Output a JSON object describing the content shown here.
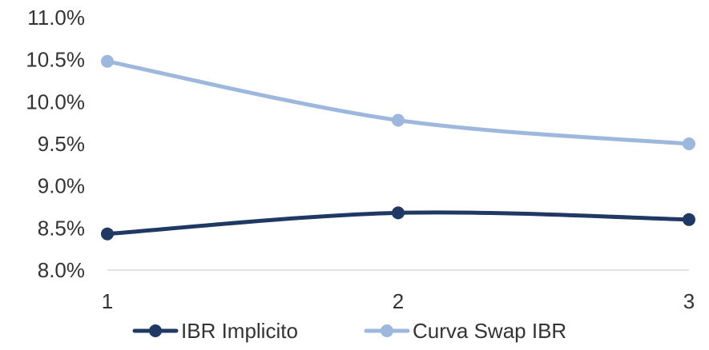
{
  "chart_data": {
    "type": "line",
    "title": "",
    "xlabel": "",
    "ylabel": "",
    "x": [
      1,
      2,
      3
    ],
    "x_tick_labels": [
      "1",
      "2",
      "3"
    ],
    "ylim": [
      8.0,
      11.0
    ],
    "y_ticks": [
      8.0,
      8.5,
      9.0,
      9.5,
      10.0,
      10.5,
      11.0
    ],
    "y_tick_labels": [
      "8.0%",
      "8.5%",
      "9.0%",
      "9.5%",
      "10.0%",
      "10.5%",
      "11.0%"
    ],
    "grid": false,
    "smooth": true,
    "legend_position": "bottom",
    "series": [
      {
        "name": "IBR Implicito",
        "values": [
          8.43,
          8.68,
          8.6
        ],
        "color": "#203864"
      },
      {
        "name": "Curva Swap IBR",
        "values": [
          10.48,
          9.78,
          9.5
        ],
        "color": "#9db8dc"
      }
    ]
  }
}
